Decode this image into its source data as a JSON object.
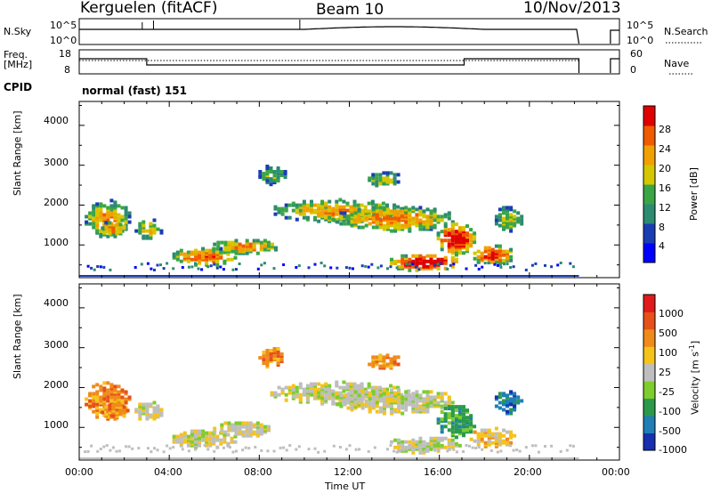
{
  "header": {
    "station": "Kerguelen (fitACF)",
    "beam": "Beam 10",
    "date": "10/Nov/2013"
  },
  "strip_labels": {
    "nsky": "N.Sky",
    "nsearch": "N.Search",
    "freq": "Freq.",
    "freq_unit": "[MHz]",
    "nave": "Nave",
    "cpid": "CPID",
    "cpid_value": "normal (fast) 151"
  },
  "chart_data": [
    {
      "type": "line",
      "name": "noise",
      "yticks_left": [
        "10^5",
        "10^0"
      ],
      "yticks_right": [
        "10^5",
        "10^0"
      ],
      "xlim": [
        0,
        24
      ]
    },
    {
      "type": "line",
      "name": "frequency-nave",
      "yticks_left": [
        "18",
        "8"
      ],
      "yticks_right": [
        "60",
        "0"
      ],
      "xlim": [
        0,
        24
      ]
    },
    {
      "type": "heatmap",
      "name": "power",
      "ylabel": "Slant Range [km]",
      "yticks": [
        "4000",
        "3000",
        "2000",
        "1000"
      ],
      "ylim": [
        180,
        4600
      ],
      "colorbar_label": "Power [dB]",
      "colorbar_ticks": [
        "28",
        "24",
        "20",
        "16",
        "12",
        "8",
        "4"
      ],
      "colorbar_colors": [
        "#0000ff",
        "#1a3db4",
        "#2c8b71",
        "#3aa545",
        "#d4c700",
        "#f0a000",
        "#f05a00",
        "#e00000"
      ]
    },
    {
      "type": "heatmap",
      "name": "velocity",
      "ylabel": "Slant Range [km]",
      "yticks": [
        "4000",
        "3000",
        "2000",
        "1000"
      ],
      "ylim": [
        180,
        4600
      ],
      "xlabel": "Time UT",
      "xticks": [
        "00:00",
        "04:00",
        "08:00",
        "12:00",
        "16:00",
        "20:00",
        "00:00"
      ],
      "xlim": [
        0,
        24
      ],
      "colorbar_label": "Velocity [m s^-1]",
      "colorbar_ticks": [
        "1000",
        "500",
        "100",
        "25",
        "-25",
        "-100",
        "-500",
        "-1000"
      ],
      "colorbar_colors": [
        "#1630b0",
        "#1f7fb6",
        "#2a9a4a",
        "#7dcd2d",
        "#bebebe",
        "#f6c31a",
        "#f08a1a",
        "#e8501a",
        "#e01a1a"
      ]
    }
  ],
  "velocity_colorbar_label_parts": {
    "main": "Velocity [m s",
    "sup": "-1",
    "end": "]"
  }
}
